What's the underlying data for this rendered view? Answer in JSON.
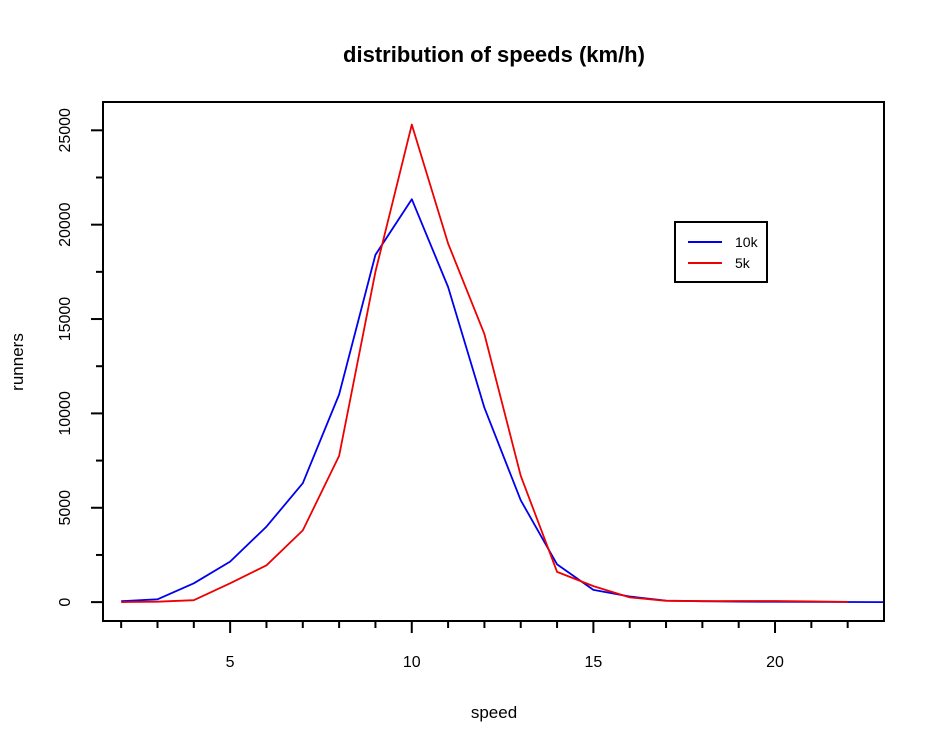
{
  "chart_data": {
    "type": "line",
    "title": "distribution of speeds (km/h)",
    "xlabel": "speed",
    "ylabel": "runners",
    "xlim": [
      1.5,
      23
    ],
    "ylim": [
      -1000,
      26500
    ],
    "x_ticks": [
      5,
      10,
      15,
      20
    ],
    "x_minor_ticks": [
      2,
      3,
      4,
      6,
      7,
      8,
      9,
      11,
      12,
      13,
      14,
      16,
      17,
      18,
      19,
      21,
      22
    ],
    "y_ticks": [
      0,
      5000,
      10000,
      15000,
      20000,
      25000
    ],
    "y_minor_ticks": [
      2500,
      7500,
      12500,
      17500,
      22500
    ],
    "x_tick_labels": [
      "5",
      "10",
      "15",
      "20"
    ],
    "y_tick_labels": [
      "0",
      "5000",
      "10000",
      "15000",
      "20000",
      "25000"
    ],
    "legend_position": "upper-right",
    "series": [
      {
        "name": "10k",
        "color": "#0000ee",
        "x": [
          2,
          3,
          4,
          5,
          6,
          7,
          8,
          9,
          10,
          11,
          12,
          13,
          14,
          15,
          16,
          17,
          18,
          19,
          20,
          21,
          22,
          23
        ],
        "values": [
          50,
          150,
          1000,
          2150,
          4000,
          6300,
          11000,
          18400,
          21350,
          16700,
          10300,
          5400,
          2000,
          650,
          300,
          80,
          50,
          30,
          20,
          10,
          5,
          0
        ]
      },
      {
        "name": "5k",
        "color": "#ee0000",
        "x": [
          2,
          3,
          4,
          5,
          6,
          7,
          8,
          9,
          10,
          11,
          12,
          13,
          14,
          15,
          16,
          17,
          18,
          19,
          20,
          21,
          22
        ],
        "values": [
          0,
          20,
          100,
          1000,
          1950,
          3800,
          7750,
          17500,
          25300,
          19000,
          14200,
          6700,
          1600,
          850,
          250,
          70,
          50,
          60,
          60,
          40,
          10
        ]
      }
    ]
  }
}
